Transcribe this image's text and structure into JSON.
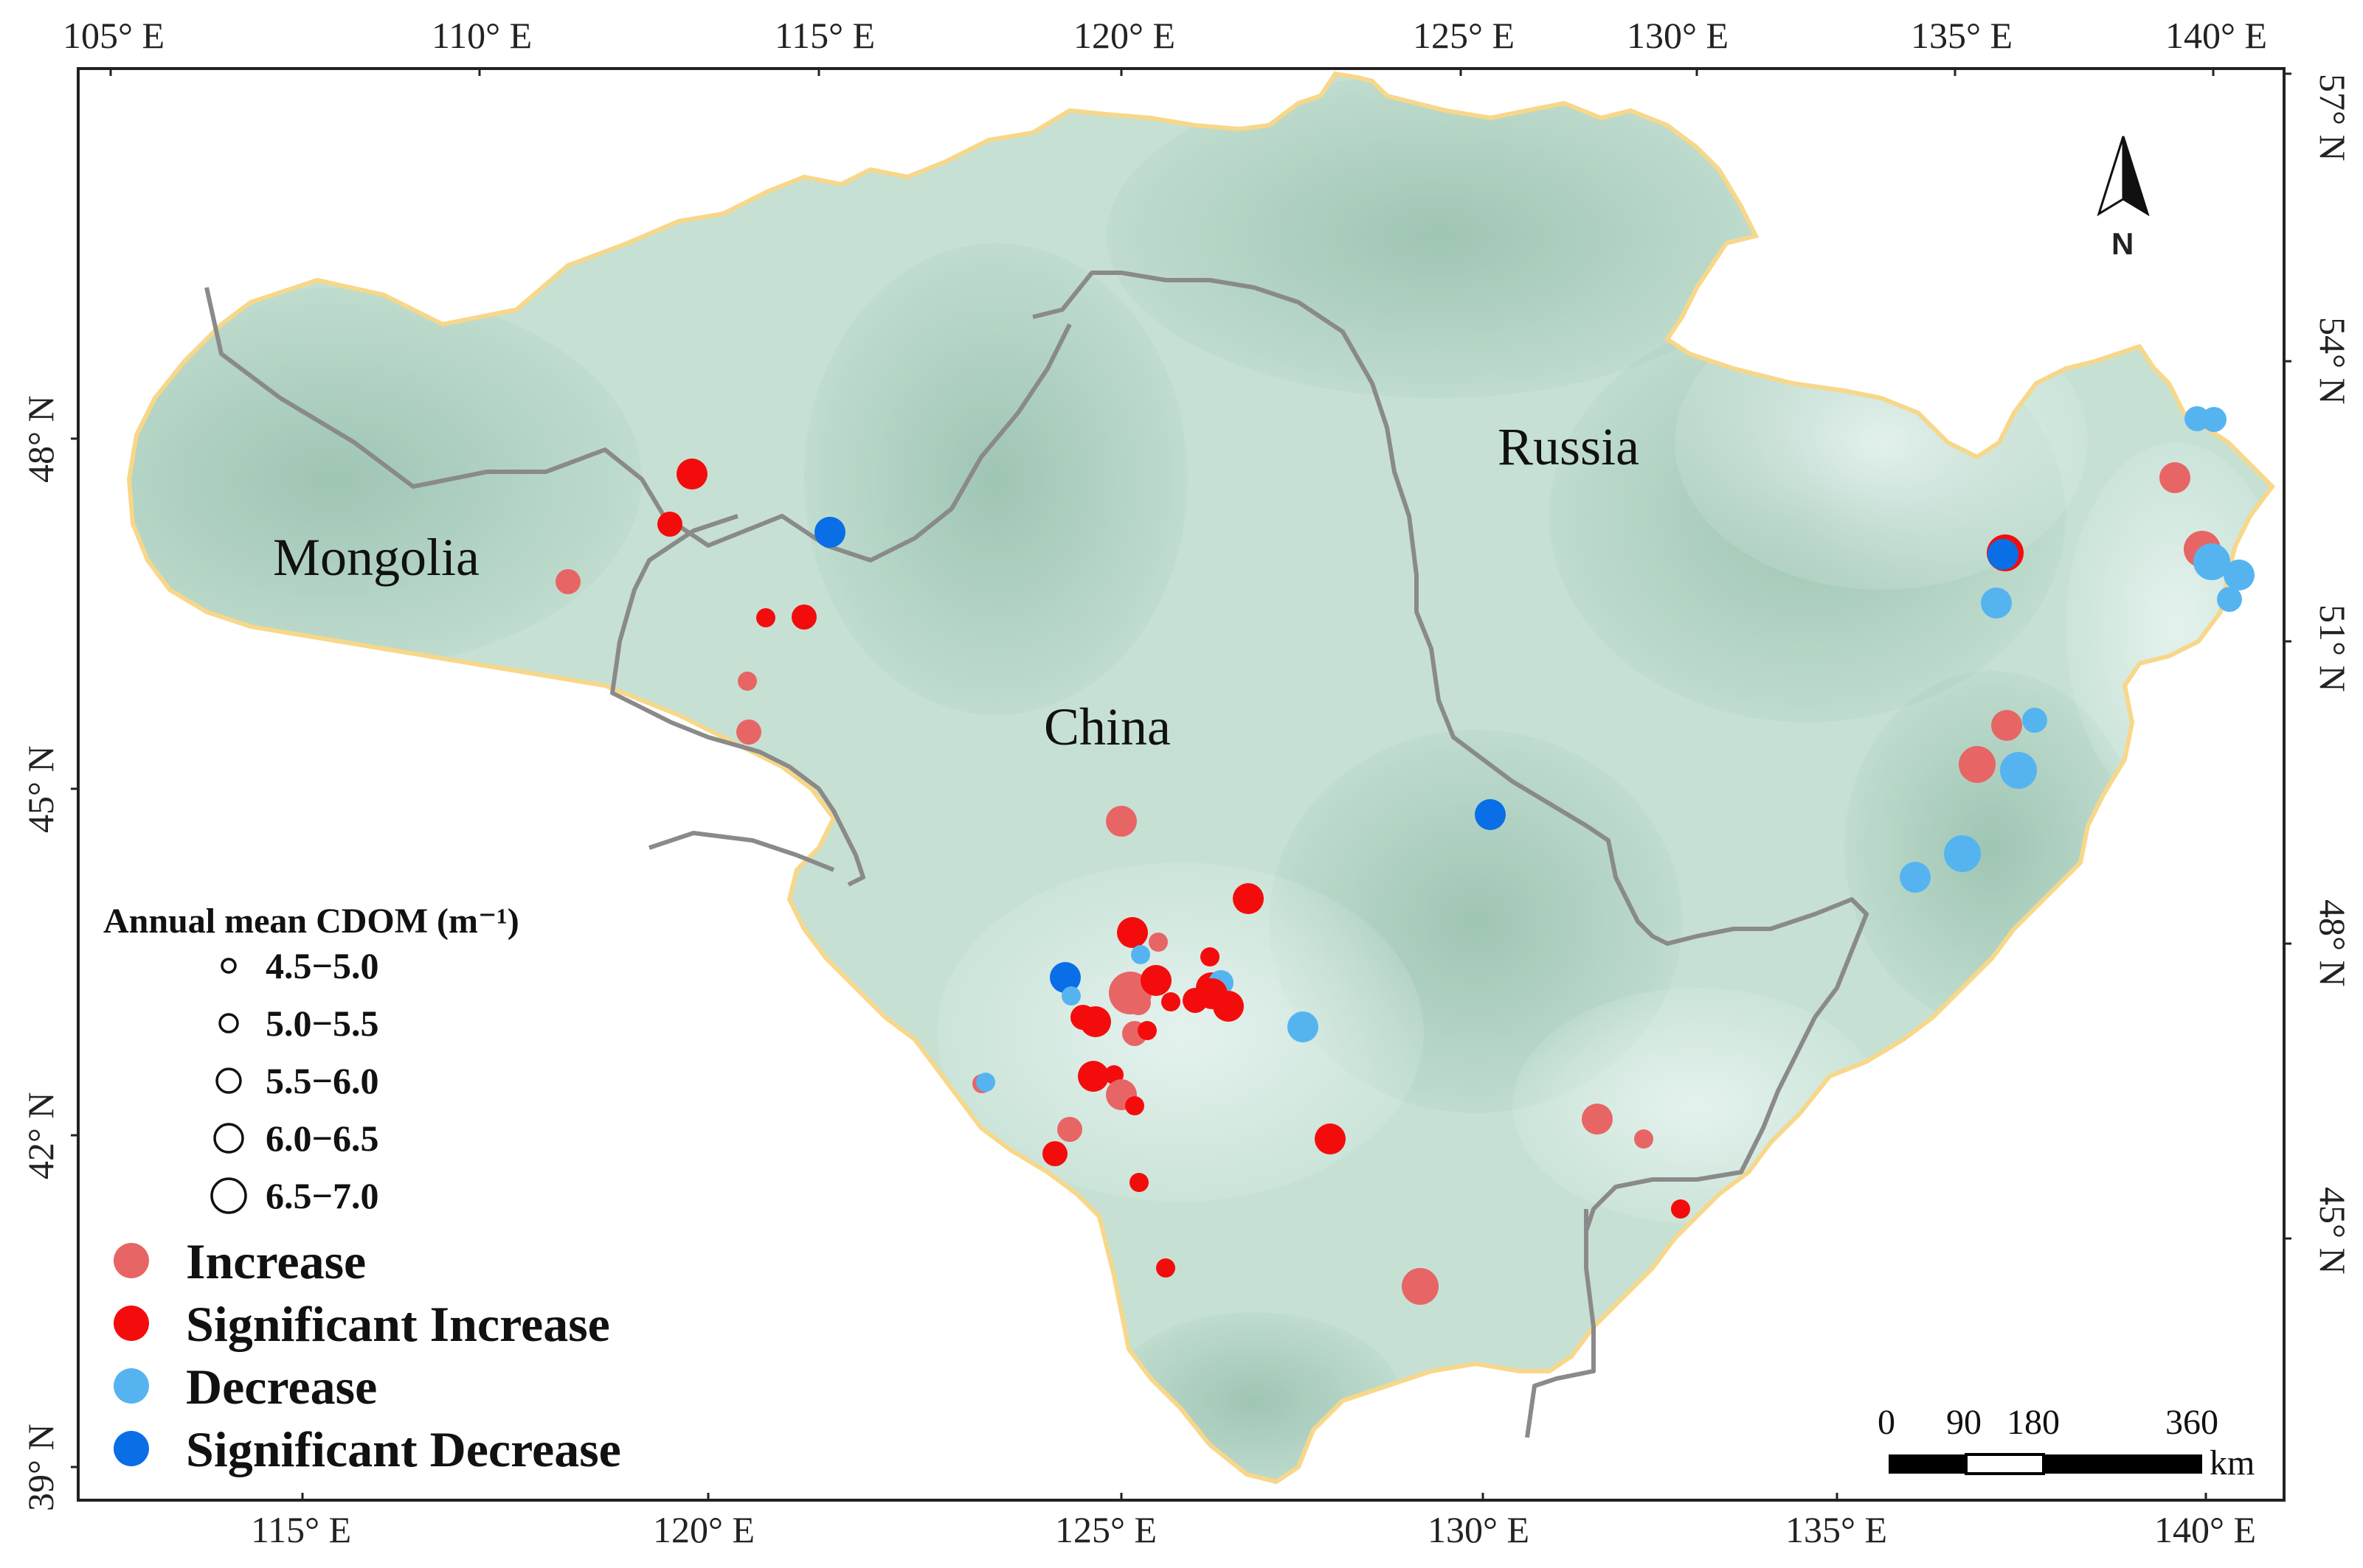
{
  "map": {
    "top_lon_labels": [
      "105° E",
      "110° E",
      "115° E",
      "120° E",
      "125° E",
      "130° E",
      "135° E",
      "140° E"
    ],
    "bottom_lon_labels": [
      "115° E",
      "120° E",
      "125° E",
      "130° E",
      "135° E",
      "140° E"
    ],
    "left_lat_labels": [
      "48° N",
      "45° N",
      "42° N",
      "39° N"
    ],
    "right_lat_labels": [
      "57° N",
      "54° N",
      "51° N",
      "48° N",
      "45° N"
    ],
    "countries": [
      "Mongolia",
      "Russia",
      "China"
    ],
    "north_arrow_label": "N",
    "colors": {
      "increase": "#e86565",
      "significant_increase": "#f40c0c",
      "decrease": "#55b4f0",
      "significant_decrease": "#0a6ee6",
      "border": "#f7d789",
      "national_border": "#8a8a8a",
      "land_base": "#b9d9c8"
    }
  },
  "legend": {
    "title": "Annual mean CDOM (m⁻¹)",
    "size_classes": [
      "4.5−5.0",
      "5.0−5.5",
      "5.5−6.0",
      "6.0−6.5",
      "6.5−7.0"
    ],
    "trend_classes": [
      {
        "label": "Increase",
        "color": "#e86565"
      },
      {
        "label": "Significant Increase",
        "color": "#f40c0c"
      },
      {
        "label": "Decrease",
        "color": "#55b4f0"
      },
      {
        "label": "Significant Decrease",
        "color": "#0a6ee6"
      }
    ]
  },
  "scale_bar": {
    "labels": [
      "0",
      "90",
      "180",
      "360"
    ],
    "unit": "km"
  },
  "sites": [
    {
      "trend": "significant_increase",
      "cdom_class": 3
    },
    {
      "trend": "significant_increase",
      "cdom_class": 2
    },
    {
      "trend": "significant_decrease",
      "cdom_class": 3
    },
    {
      "trend": "increase",
      "cdom_class": 2
    },
    {
      "trend": "significant_increase",
      "cdom_class": 1
    },
    {
      "trend": "significant_increase",
      "cdom_class": 2
    },
    {
      "trend": "increase",
      "cdom_class": 1
    },
    {
      "trend": "increase",
      "cdom_class": 2
    },
    {
      "trend": "increase",
      "cdom_class": 3
    },
    {
      "trend": "significant_increase",
      "cdom_class": 3
    },
    {
      "trend": "significant_increase",
      "cdom_class": 3
    },
    {
      "trend": "increase",
      "cdom_class": 1
    },
    {
      "trend": "decrease",
      "cdom_class": 1
    },
    {
      "trend": "significant_decrease",
      "cdom_class": 3
    },
    {
      "trend": "decrease",
      "cdom_class": 1
    },
    {
      "trend": "increase",
      "cdom_class": 5
    },
    {
      "trend": "increase",
      "cdom_class": 2
    },
    {
      "trend": "significant_increase",
      "cdom_class": 3
    },
    {
      "trend": "significant_increase",
      "cdom_class": 1
    },
    {
      "trend": "significant_increase",
      "cdom_class": 2
    },
    {
      "trend": "significant_increase",
      "cdom_class": 3
    },
    {
      "trend": "decrease",
      "cdom_class": 2
    },
    {
      "trend": "significant_increase",
      "cdom_class": 3
    },
    {
      "trend": "significant_increase",
      "cdom_class": 3
    },
    {
      "trend": "significant_increase",
      "cdom_class": 1
    },
    {
      "trend": "significant_increase",
      "cdom_class": 2
    },
    {
      "trend": "increase",
      "cdom_class": 2
    },
    {
      "trend": "significant_increase",
      "cdom_class": 1
    },
    {
      "trend": "significant_increase",
      "cdom_class": 3
    },
    {
      "trend": "significant_increase",
      "cdom_class": 3
    },
    {
      "trend": "significant_increase",
      "cdom_class": 1
    },
    {
      "trend": "increase",
      "cdom_class": 3
    },
    {
      "trend": "significant_increase",
      "cdom_class": 1
    },
    {
      "trend": "increase",
      "cdom_class": 2
    },
    {
      "trend": "significant_increase",
      "cdom_class": 2
    },
    {
      "trend": "significant_increase",
      "cdom_class": 1
    },
    {
      "trend": "significant_increase",
      "cdom_class": 1
    },
    {
      "trend": "increase",
      "cdom_class": 1
    },
    {
      "trend": "decrease",
      "cdom_class": 1
    },
    {
      "trend": "decrease",
      "cdom_class": 3
    },
    {
      "trend": "significant_increase",
      "cdom_class": 3
    },
    {
      "trend": "significant_decrease",
      "cdom_class": 3
    },
    {
      "trend": "increase",
      "cdom_class": 3
    },
    {
      "trend": "increase",
      "cdom_class": 1
    },
    {
      "trend": "significant_increase",
      "cdom_class": 1
    },
    {
      "trend": "increase",
      "cdom_class": 4
    },
    {
      "trend": "decrease",
      "cdom_class": 2
    },
    {
      "trend": "decrease",
      "cdom_class": 2
    },
    {
      "trend": "increase",
      "cdom_class": 3
    },
    {
      "trend": "increase",
      "cdom_class": 4
    },
    {
      "trend": "significant_increase",
      "cdom_class": 4
    },
    {
      "trend": "decrease",
      "cdom_class": 4
    },
    {
      "trend": "decrease",
      "cdom_class": 3
    },
    {
      "trend": "decrease",
      "cdom_class": 2
    },
    {
      "trend": "significant_decrease",
      "cdom_class": 3
    },
    {
      "trend": "decrease",
      "cdom_class": 3
    },
    {
      "trend": "increase",
      "cdom_class": 3
    },
    {
      "trend": "decrease",
      "cdom_class": 2
    },
    {
      "trend": "increase",
      "cdom_class": 4
    },
    {
      "trend": "decrease",
      "cdom_class": 4
    },
    {
      "trend": "decrease",
      "cdom_class": 4
    },
    {
      "trend": "decrease",
      "cdom_class": 3
    }
  ]
}
